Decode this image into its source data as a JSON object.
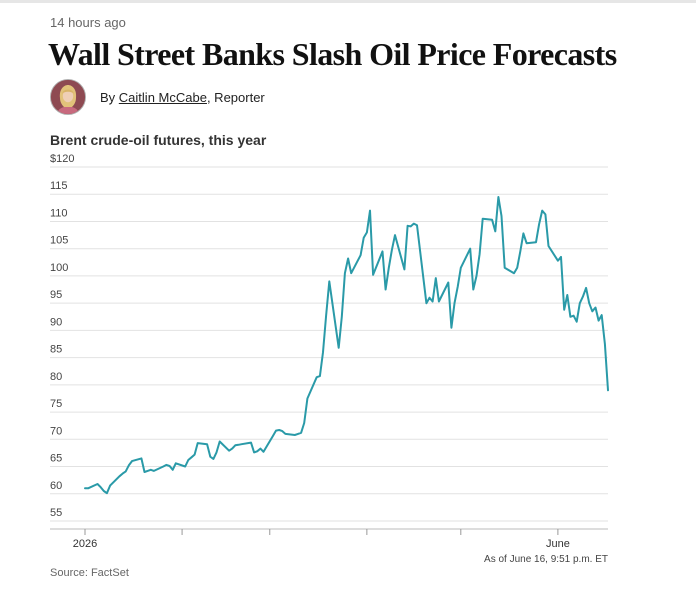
{
  "article": {
    "timestamp": "14 hours ago",
    "headline": "Wall Street Banks Slash Oil Price Forecasts",
    "byline_prefix": "By ",
    "author": "Caitlin McCabe",
    "byline_suffix": ", Reporter"
  },
  "colors": {
    "line": "#2a9aa8",
    "grid": "#e2e2e2",
    "axis": "#999999"
  },
  "chart_data": {
    "type": "line",
    "title": "Brent crude-oil futures, this year",
    "xlabel": "",
    "ylabel": "",
    "ylim": [
      55,
      120
    ],
    "yticks": [
      55,
      60,
      65,
      70,
      75,
      80,
      85,
      90,
      95,
      100,
      105,
      110,
      115,
      120
    ],
    "ytick_labels": [
      "55",
      "60",
      "65",
      "70",
      "75",
      "80",
      "85",
      "90",
      "95",
      "100",
      "105",
      "110",
      "115",
      "$120"
    ],
    "xlim": [
      "2026-01-01",
      "2026-06-17"
    ],
    "xticks": [
      {
        "date": "2026-01-01",
        "label": "2026"
      },
      {
        "date": "2026-02-01",
        "label": ""
      },
      {
        "date": "2026-03-01",
        "label": ""
      },
      {
        "date": "2026-04-01",
        "label": ""
      },
      {
        "date": "2026-05-01",
        "label": ""
      },
      {
        "date": "2026-06-01",
        "label": "June"
      }
    ],
    "grid": true,
    "legend": "none",
    "annotation": "As of June 16, 9:51 p.m. ET",
    "source": "Source: FactSet",
    "series": [
      {
        "points": [
          [
            "2026-01-01",
            61.0
          ],
          [
            "2026-01-02",
            61.0
          ],
          [
            "2026-01-05",
            61.8
          ],
          [
            "2026-01-06",
            61.2
          ],
          [
            "2026-01-07",
            60.5
          ],
          [
            "2026-01-08",
            60.1
          ],
          [
            "2026-01-09",
            61.5
          ],
          [
            "2026-01-12",
            63.2
          ],
          [
            "2026-01-13",
            63.7
          ],
          [
            "2026-01-14",
            64.1
          ],
          [
            "2026-01-15",
            65.2
          ],
          [
            "2026-01-16",
            66.0
          ],
          [
            "2026-01-19",
            66.5
          ],
          [
            "2026-01-20",
            64.0
          ],
          [
            "2026-01-21",
            64.2
          ],
          [
            "2026-01-22",
            64.4
          ],
          [
            "2026-01-23",
            64.2
          ],
          [
            "2026-01-26",
            65.0
          ],
          [
            "2026-01-27",
            65.3
          ],
          [
            "2026-01-28",
            65.1
          ],
          [
            "2026-01-29",
            64.4
          ],
          [
            "2026-01-30",
            65.6
          ],
          [
            "2026-02-02",
            65.0
          ],
          [
            "2026-02-03",
            66.2
          ],
          [
            "2026-02-04",
            66.7
          ],
          [
            "2026-02-05",
            67.2
          ],
          [
            "2026-02-06",
            69.3
          ],
          [
            "2026-02-09",
            69.1
          ],
          [
            "2026-02-10",
            66.8
          ],
          [
            "2026-02-11",
            66.4
          ],
          [
            "2026-02-12",
            67.6
          ],
          [
            "2026-02-13",
            69.6
          ],
          [
            "2026-02-16",
            67.9
          ],
          [
            "2026-02-17",
            68.3
          ],
          [
            "2026-02-18",
            68.9
          ],
          [
            "2026-02-19",
            69.0
          ],
          [
            "2026-02-20",
            69.1
          ],
          [
            "2026-02-23",
            69.4
          ],
          [
            "2026-02-24",
            67.6
          ],
          [
            "2026-02-25",
            67.8
          ],
          [
            "2026-02-26",
            68.3
          ],
          [
            "2026-02-27",
            67.7
          ],
          [
            "2026-03-02",
            70.6
          ],
          [
            "2026-03-03",
            71.6
          ],
          [
            "2026-03-04",
            71.7
          ],
          [
            "2026-03-05",
            71.5
          ],
          [
            "2026-03-06",
            71.0
          ],
          [
            "2026-03-09",
            70.8
          ],
          [
            "2026-03-10",
            71.0
          ],
          [
            "2026-03-11",
            71.2
          ],
          [
            "2026-03-12",
            73.0
          ],
          [
            "2026-03-13",
            77.5
          ],
          [
            "2026-03-16",
            81.4
          ],
          [
            "2026-03-17",
            81.6
          ],
          [
            "2026-03-18",
            86.0
          ],
          [
            "2026-03-19",
            92.7
          ],
          [
            "2026-03-20",
            99.0
          ],
          [
            "2026-03-23",
            86.8
          ],
          [
            "2026-03-24",
            92.5
          ],
          [
            "2026-03-25",
            100.5
          ],
          [
            "2026-03-26",
            103.2
          ],
          [
            "2026-03-27",
            100.5
          ],
          [
            "2026-03-30",
            103.8
          ],
          [
            "2026-03-31",
            107.0
          ],
          [
            "2026-04-01",
            108.0
          ],
          [
            "2026-04-02",
            112.0
          ],
          [
            "2026-04-03",
            100.2
          ],
          [
            "2026-04-06",
            104.5
          ],
          [
            "2026-04-07",
            97.5
          ],
          [
            "2026-04-08",
            101.5
          ],
          [
            "2026-04-09",
            104.8
          ],
          [
            "2026-04-10",
            107.5
          ],
          [
            "2026-04-13",
            101.2
          ],
          [
            "2026-04-14",
            109.2
          ],
          [
            "2026-04-15",
            109.1
          ],
          [
            "2026-04-16",
            109.6
          ],
          [
            "2026-04-17",
            109.3
          ],
          [
            "2026-04-20",
            95.0
          ],
          [
            "2026-04-21",
            96.0
          ],
          [
            "2026-04-22",
            95.3
          ],
          [
            "2026-04-23",
            99.6
          ],
          [
            "2026-04-24",
            95.3
          ],
          [
            "2026-04-27",
            98.8
          ],
          [
            "2026-04-28",
            90.5
          ],
          [
            "2026-04-29",
            95.0
          ],
          [
            "2026-04-30",
            98.0
          ],
          [
            "2026-05-01",
            101.5
          ],
          [
            "2026-05-04",
            105.0
          ],
          [
            "2026-05-05",
            97.5
          ],
          [
            "2026-05-06",
            100.0
          ],
          [
            "2026-05-07",
            104.0
          ],
          [
            "2026-05-08",
            110.5
          ],
          [
            "2026-05-11",
            110.3
          ],
          [
            "2026-05-12",
            108.2
          ],
          [
            "2026-05-13",
            114.5
          ],
          [
            "2026-05-14",
            111.0
          ],
          [
            "2026-05-15",
            101.5
          ],
          [
            "2026-05-18",
            100.5
          ],
          [
            "2026-05-19",
            101.5
          ],
          [
            "2026-05-20",
            104.5
          ],
          [
            "2026-05-21",
            107.8
          ],
          [
            "2026-05-22",
            106.0
          ],
          [
            "2026-05-25",
            106.2
          ],
          [
            "2026-05-26",
            109.5
          ],
          [
            "2026-05-27",
            112.0
          ],
          [
            "2026-05-28",
            111.3
          ],
          [
            "2026-05-29",
            105.5
          ],
          [
            "2026-06-01",
            102.8
          ],
          [
            "2026-06-02",
            103.5
          ],
          [
            "2026-06-03",
            93.8
          ],
          [
            "2026-06-04",
            96.5
          ],
          [
            "2026-06-05",
            92.5
          ],
          [
            "2026-06-06",
            92.7
          ],
          [
            "2026-06-07",
            91.6
          ],
          [
            "2026-06-08",
            95.0
          ],
          [
            "2026-06-09",
            96.2
          ],
          [
            "2026-06-10",
            97.8
          ],
          [
            "2026-06-11",
            95.0
          ],
          [
            "2026-06-12",
            93.5
          ],
          [
            "2026-06-13",
            94.2
          ],
          [
            "2026-06-14",
            91.8
          ],
          [
            "2026-06-15",
            92.8
          ],
          [
            "2026-06-16",
            87.5
          ],
          [
            "2026-06-17",
            79.0
          ]
        ]
      }
    ]
  }
}
